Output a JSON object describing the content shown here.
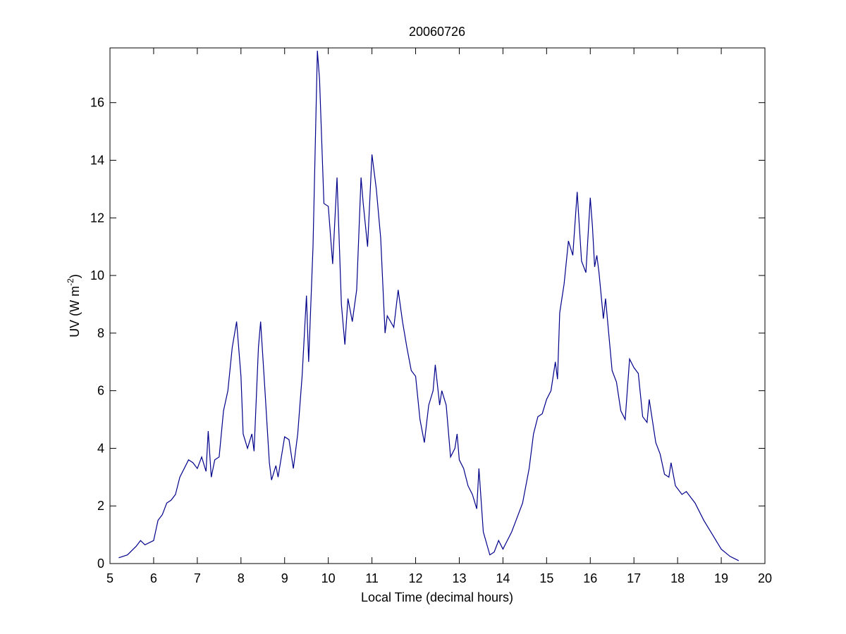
{
  "chart_data": {
    "type": "line",
    "title": "20060726",
    "xlabel": "Local Time (decimal hours)",
    "ylabel": "UV (W m",
    "ylabel_sup": "-2",
    "ylabel_end": ")",
    "xlim": [
      5,
      20
    ],
    "xticks": [
      5,
      6,
      7,
      8,
      9,
      10,
      11,
      12,
      13,
      14,
      15,
      16,
      17,
      18,
      19,
      20
    ],
    "ylim": [
      0,
      17.9
    ],
    "yticks": [
      0,
      2,
      4,
      6,
      8,
      10,
      12,
      14,
      16
    ],
    "grid": false,
    "x": [
      5.2,
      5.4,
      5.6,
      5.7,
      5.8,
      6.0,
      6.1,
      6.2,
      6.3,
      6.4,
      6.5,
      6.6,
      6.7,
      6.8,
      6.9,
      7.0,
      7.1,
      7.2,
      7.25,
      7.32,
      7.4,
      7.5,
      7.6,
      7.7,
      7.8,
      7.9,
      8.0,
      8.05,
      8.15,
      8.25,
      8.3,
      8.4,
      8.45,
      8.55,
      8.65,
      8.7,
      8.8,
      8.85,
      9.0,
      9.1,
      9.2,
      9.3,
      9.4,
      9.5,
      9.55,
      9.65,
      9.75,
      9.8,
      9.9,
      10.0,
      10.1,
      10.2,
      10.3,
      10.38,
      10.45,
      10.55,
      10.65,
      10.75,
      10.8,
      10.9,
      11.0,
      11.1,
      11.2,
      11.3,
      11.35,
      11.5,
      11.6,
      11.7,
      11.8,
      11.9,
      12.0,
      12.1,
      12.2,
      12.3,
      12.4,
      12.45,
      12.55,
      12.6,
      12.7,
      12.8,
      12.9,
      12.95,
      13.0,
      13.1,
      13.2,
      13.3,
      13.4,
      13.45,
      13.55,
      13.7,
      13.8,
      13.9,
      14.0,
      14.1,
      14.2,
      14.3,
      14.45,
      14.6,
      14.7,
      14.8,
      14.9,
      15.0,
      15.1,
      15.2,
      15.25,
      15.3,
      15.4,
      15.5,
      15.6,
      15.7,
      15.8,
      15.9,
      16.0,
      16.05,
      16.1,
      16.15,
      16.2,
      16.3,
      16.35,
      16.5,
      16.6,
      16.7,
      16.8,
      16.9,
      17.0,
      17.1,
      17.2,
      17.3,
      17.35,
      17.5,
      17.6,
      17.7,
      17.8,
      17.85,
      17.95,
      18.1,
      18.2,
      18.4,
      18.6,
      18.8,
      19.0,
      19.2,
      19.4
    ],
    "series": [
      {
        "color": "#00008b",
        "values": [
          0.2,
          0.3,
          0.6,
          0.8,
          0.65,
          0.8,
          1.5,
          1.7,
          2.1,
          2.2,
          2.4,
          3.0,
          3.3,
          3.6,
          3.5,
          3.3,
          3.7,
          3.2,
          4.6,
          3.0,
          3.6,
          3.7,
          5.3,
          6.0,
          7.5,
          8.4,
          6.5,
          4.5,
          4.0,
          4.5,
          3.9,
          7.5,
          8.4,
          6.0,
          3.5,
          2.9,
          3.4,
          3.0,
          4.4,
          4.3,
          3.3,
          4.5,
          6.5,
          9.3,
          7.0,
          11.0,
          17.8,
          16.8,
          12.5,
          12.4,
          10.4,
          13.4,
          9.0,
          7.6,
          9.2,
          8.4,
          9.5,
          13.4,
          12.5,
          11.0,
          14.2,
          13.0,
          11.3,
          8.0,
          8.6,
          8.2,
          9.5,
          8.4,
          7.5,
          6.7,
          6.5,
          5.0,
          4.2,
          5.5,
          6.0,
          6.9,
          5.5,
          6.0,
          5.5,
          3.7,
          4.0,
          4.5,
          3.6,
          3.3,
          2.7,
          2.4,
          1.9,
          3.3,
          1.1,
          0.3,
          0.4,
          0.8,
          0.5,
          0.8,
          1.1,
          1.5,
          2.1,
          3.3,
          4.5,
          5.1,
          5.2,
          5.7,
          6.0,
          7.0,
          6.4,
          8.7,
          9.7,
          11.2,
          10.7,
          12.9,
          10.5,
          10.1,
          12.7,
          11.7,
          10.3,
          10.7,
          10.1,
          8.5,
          9.2,
          6.7,
          6.3,
          5.3,
          5.0,
          7.1,
          6.8,
          6.6,
          5.1,
          4.9,
          5.7,
          4.2,
          3.8,
          3.1,
          3.0,
          3.5,
          2.7,
          2.4,
          2.5,
          2.1,
          1.5,
          1.0,
          0.5,
          0.25,
          0.1
        ]
      }
    ]
  }
}
